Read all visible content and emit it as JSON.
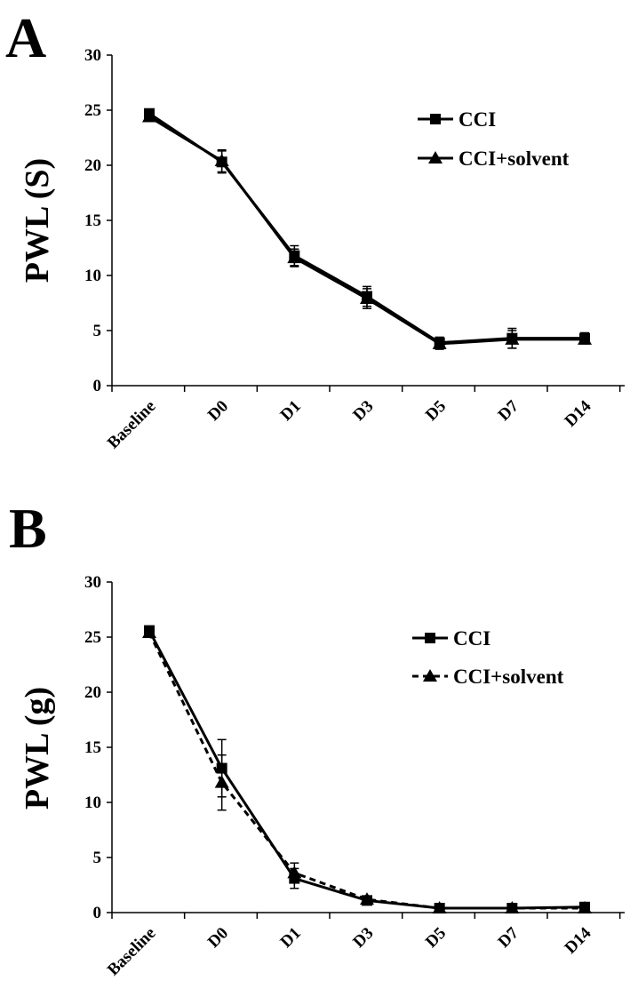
{
  "chart_data": [
    {
      "panel": "A",
      "type": "line",
      "ylabel": "PWL (S)",
      "ylim": [
        0,
        30
      ],
      "yticks": [
        0,
        5,
        10,
        15,
        20,
        25,
        30
      ],
      "categories": [
        "Baseline",
        "D0",
        "D1",
        "D3",
        "D5",
        "D7",
        "D14"
      ],
      "series": [
        {
          "name": "CCI",
          "marker": "square",
          "dash": "solid",
          "values": [
            24.7,
            20.3,
            11.8,
            8.1,
            3.9,
            4.3,
            4.3
          ],
          "errors": [
            0.3,
            1.0,
            0.9,
            0.9,
            0.5,
            0.9,
            0.5
          ]
        },
        {
          "name": "CCI+solvent",
          "marker": "triangle",
          "dash": "solid",
          "values": [
            24.4,
            20.4,
            11.6,
            7.9,
            3.8,
            4.2,
            4.2
          ],
          "errors": [
            0.3,
            1.0,
            0.8,
            0.9,
            0.5,
            0.8,
            0.4
          ]
        }
      ],
      "legend_position": "top-right"
    },
    {
      "panel": "B",
      "type": "line",
      "ylabel": "PWL (g)",
      "ylim": [
        0,
        30
      ],
      "yticks": [
        0,
        5,
        10,
        15,
        20,
        25,
        30
      ],
      "categories": [
        "Baseline",
        "D0",
        "D1",
        "D3",
        "D5",
        "D7",
        "D14"
      ],
      "series": [
        {
          "name": "CCI",
          "marker": "square",
          "dash": "solid",
          "values": [
            25.6,
            13.1,
            3.1,
            1.1,
            0.4,
            0.4,
            0.5
          ],
          "errors": [
            0.3,
            2.6,
            0.9,
            0.3,
            0.1,
            0.1,
            0.1
          ]
        },
        {
          "name": "CCI+solvent",
          "marker": "triangle",
          "dash": "dashed",
          "values": [
            25.4,
            11.8,
            3.6,
            1.2,
            0.4,
            0.4,
            0.4
          ],
          "errors": [
            0.3,
            2.5,
            0.9,
            0.3,
            0.1,
            0.1,
            0.1
          ]
        }
      ],
      "legend_position": "top-right"
    }
  ]
}
